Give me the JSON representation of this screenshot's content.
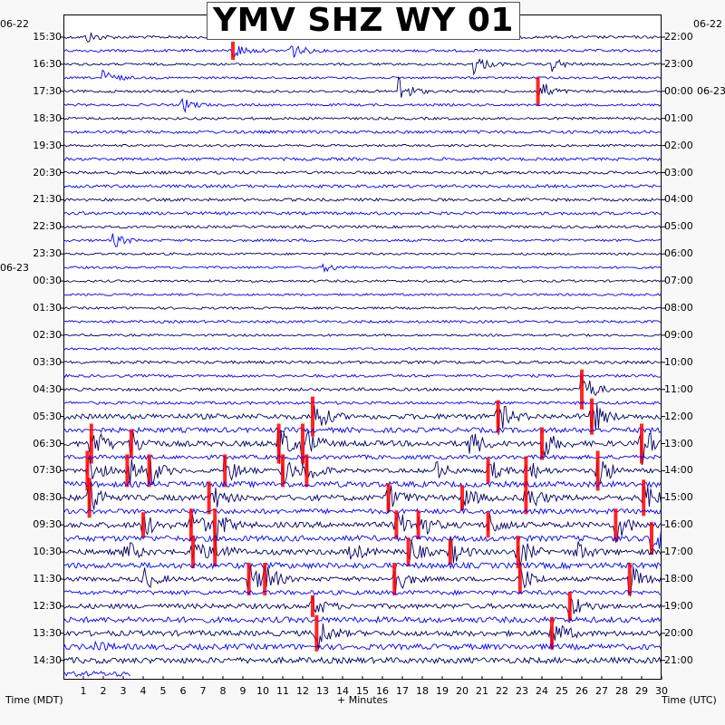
{
  "title": "YMV SHZ WY 01",
  "colors": {
    "trace_dark": "#000066",
    "trace_blue": "#0000ff",
    "clip": "#ff0000"
  },
  "chart_data": {
    "type": "line",
    "title": "YMV SHZ WY 01",
    "xlabel": "+ Minutes",
    "ylabel_left": "Time (MDT)",
    "ylabel_right": "Time (UTC)",
    "xlim": [
      0,
      30
    ],
    "x_ticks": [
      "1",
      "2",
      "3",
      "4",
      "5",
      "6",
      "7",
      "8",
      "9",
      "10",
      "11",
      "12",
      "13",
      "14",
      "15",
      "16",
      "17",
      "18",
      "19",
      "20",
      "21",
      "22",
      "23",
      "24",
      "25",
      "26",
      "27",
      "28",
      "29",
      "30"
    ],
    "left_ticks": [
      "15:30",
      "16:30",
      "17:30",
      "18:30",
      "19:30",
      "20:30",
      "21:30",
      "22:30",
      "23:30",
      "00:30",
      "01:30",
      "02:30",
      "03:30",
      "04:30",
      "05:30",
      "06:30",
      "07:30",
      "08:30",
      "09:30",
      "10:30",
      "11:30",
      "12:30",
      "13:30",
      "14:30"
    ],
    "right_ticks": [
      "22:00",
      "23:00",
      "00:00",
      "01:00",
      "02:00",
      "03:00",
      "04:00",
      "05:00",
      "06:00",
      "07:00",
      "08:00",
      "09:00",
      "10:00",
      "11:00",
      "12:00",
      "13:00",
      "14:00",
      "15:00",
      "16:00",
      "17:00",
      "18:00",
      "19:00",
      "20:00",
      "21:00"
    ],
    "left_dates": [
      {
        "text": "06-22",
        "at_tick": 0
      },
      {
        "text": "06-23",
        "at_tick": 9
      }
    ],
    "right_dates": [
      {
        "text": "06-22",
        "at_tick": 0
      },
      {
        "text": "06-23",
        "at_tick": 2
      }
    ],
    "traces_per_label": 2,
    "events": [
      {
        "trace": 0,
        "minute": 1.2,
        "amp": 6
      },
      {
        "trace": 1,
        "minute": 8.5,
        "amp": 10,
        "clip": true
      },
      {
        "trace": 1,
        "minute": 11.3,
        "amp": 12
      },
      {
        "trace": 2,
        "minute": 20.6,
        "amp": 12
      },
      {
        "trace": 2,
        "minute": 24.5,
        "amp": 8
      },
      {
        "trace": 3,
        "minute": 2,
        "amp": 10
      },
      {
        "trace": 4,
        "minute": 16.8,
        "amp": 18
      },
      {
        "trace": 4,
        "minute": 23.8,
        "amp": 16,
        "clip": true
      },
      {
        "trace": 5,
        "minute": 6,
        "amp": 8
      },
      {
        "trace": 15,
        "minute": 2.5,
        "amp": 8
      },
      {
        "trace": 17,
        "minute": 13.1,
        "amp": 5
      },
      {
        "trace": 26,
        "minute": 26,
        "amp": 22,
        "clip": true
      },
      {
        "trace": 28,
        "minute": 12.5,
        "amp": 22,
        "clip": true
      },
      {
        "trace": 28,
        "minute": 21.8,
        "amp": 18,
        "clip": true
      },
      {
        "trace": 28,
        "minute": 26.5,
        "amp": 20,
        "clip": true
      },
      {
        "trace": 30,
        "minute": 1.4,
        "amp": 22,
        "clip": true
      },
      {
        "trace": 30,
        "minute": 3.4,
        "amp": 16,
        "clip": true
      },
      {
        "trace": 30,
        "minute": 10.8,
        "amp": 22,
        "clip": true
      },
      {
        "trace": 30,
        "minute": 12,
        "amp": 22,
        "clip": true
      },
      {
        "trace": 30,
        "minute": 20.4,
        "amp": 16
      },
      {
        "trace": 30,
        "minute": 24,
        "amp": 18,
        "clip": true
      },
      {
        "trace": 30,
        "minute": 29,
        "amp": 22,
        "clip": true
      },
      {
        "trace": 32,
        "minute": 1.2,
        "amp": 22,
        "clip": true
      },
      {
        "trace": 32,
        "minute": 3.2,
        "amp": 18,
        "clip": true
      },
      {
        "trace": 32,
        "minute": 4.3,
        "amp": 18,
        "clip": true
      },
      {
        "trace": 32,
        "minute": 8.1,
        "amp": 18,
        "clip": true
      },
      {
        "trace": 32,
        "minute": 11,
        "amp": 18,
        "clip": true
      },
      {
        "trace": 32,
        "minute": 12.2,
        "amp": 18,
        "clip": true
      },
      {
        "trace": 32,
        "minute": 18.7,
        "amp": 10
      },
      {
        "trace": 32,
        "minute": 21.3,
        "amp": 14,
        "clip": true
      },
      {
        "trace": 32,
        "minute": 23.2,
        "amp": 16,
        "clip": true
      },
      {
        "trace": 32,
        "minute": 26.8,
        "amp": 22,
        "clip": true
      },
      {
        "trace": 34,
        "minute": 1.3,
        "amp": 22,
        "clip": true
      },
      {
        "trace": 34,
        "minute": 7.3,
        "amp": 18,
        "clip": true
      },
      {
        "trace": 34,
        "minute": 16.3,
        "amp": 16,
        "clip": true
      },
      {
        "trace": 34,
        "minute": 20,
        "amp": 14,
        "clip": true
      },
      {
        "trace": 34,
        "minute": 23.2,
        "amp": 18,
        "clip": true
      },
      {
        "trace": 34,
        "minute": 29.1,
        "amp": 20,
        "clip": true
      },
      {
        "trace": 36,
        "minute": 4,
        "amp": 14,
        "clip": true
      },
      {
        "trace": 36,
        "minute": 6.4,
        "amp": 18,
        "clip": true
      },
      {
        "trace": 36,
        "minute": 7.6,
        "amp": 18,
        "clip": true
      },
      {
        "trace": 36,
        "minute": 16.7,
        "amp": 16,
        "clip": true
      },
      {
        "trace": 36,
        "minute": 17.8,
        "amp": 16,
        "clip": true
      },
      {
        "trace": 36,
        "minute": 21.3,
        "amp": 14,
        "clip": true
      },
      {
        "trace": 36,
        "minute": 27.7,
        "amp": 18,
        "clip": true
      },
      {
        "trace": 37,
        "minute": 29.5,
        "amp": 18,
        "clip": true
      },
      {
        "trace": 38,
        "minute": 3.1,
        "amp": 14
      },
      {
        "trace": 38,
        "minute": 6.5,
        "amp": 18,
        "clip": true
      },
      {
        "trace": 38,
        "minute": 7.6,
        "amp": 16,
        "clip": true
      },
      {
        "trace": 38,
        "minute": 14.4,
        "amp": 12
      },
      {
        "trace": 38,
        "minute": 17.3,
        "amp": 16,
        "clip": true
      },
      {
        "trace": 38,
        "minute": 19.4,
        "amp": 14,
        "clip": true
      },
      {
        "trace": 38,
        "minute": 22.8,
        "amp": 18,
        "clip": true
      },
      {
        "trace": 38,
        "minute": 25.7,
        "amp": 12
      },
      {
        "trace": 40,
        "minute": 4,
        "amp": 14
      },
      {
        "trace": 40,
        "minute": 9.3,
        "amp": 18,
        "clip": true
      },
      {
        "trace": 40,
        "minute": 10.1,
        "amp": 18,
        "clip": true
      },
      {
        "trace": 40,
        "minute": 16.6,
        "amp": 18,
        "clip": true
      },
      {
        "trace": 40,
        "minute": 22.9,
        "amp": 16,
        "clip": true
      },
      {
        "trace": 40,
        "minute": 28.4,
        "amp": 18,
        "clip": true
      },
      {
        "trace": 42,
        "minute": 12.5,
        "amp": 12,
        "clip": true
      },
      {
        "trace": 42,
        "minute": 25.4,
        "amp": 16,
        "clip": true
      },
      {
        "trace": 44,
        "minute": 12.7,
        "amp": 20,
        "clip": true
      },
      {
        "trace": 44,
        "minute": 24.5,
        "amp": 18,
        "clip": true
      },
      {
        "trace": 45,
        "minute": 1.5,
        "amp": 6
      }
    ]
  }
}
